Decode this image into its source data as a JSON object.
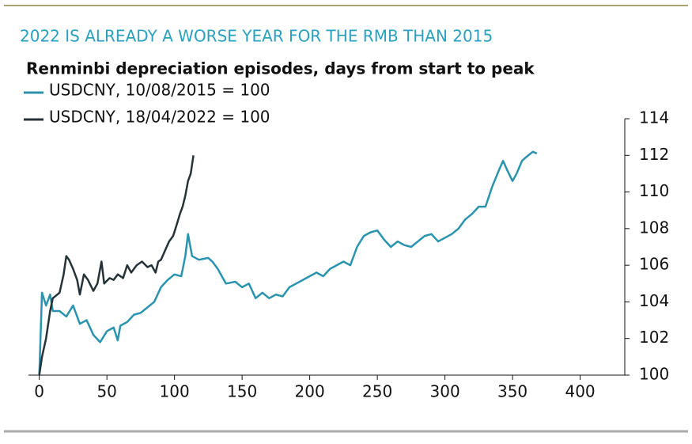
{
  "chart_data": {
    "type": "line",
    "title": "2022 IS ALREADY A WORSE YEAR FOR THE RMB THAN 2015",
    "subtitle": "Renminbi depreciation episodes, days from start to peak",
    "xlim": [
      -8,
      433
    ],
    "xticks": [
      0,
      50,
      100,
      150,
      200,
      250,
      300,
      350,
      400
    ],
    "ylim": [
      100,
      114
    ],
    "yticks": [
      100,
      102,
      104,
      106,
      108,
      110,
      112,
      114
    ],
    "y_axis_side": "right",
    "series": [
      {
        "name": "USDCNY, 10/08/2015 = 100",
        "color": "#2a93ae",
        "x": [
          0,
          2,
          5,
          8,
          10,
          15,
          20,
          25,
          30,
          35,
          40,
          45,
          50,
          55,
          58,
          60,
          65,
          70,
          75,
          80,
          85,
          90,
          95,
          100,
          105,
          108,
          110,
          113,
          118,
          125,
          128,
          132,
          138,
          145,
          150,
          155,
          160,
          165,
          170,
          175,
          180,
          185,
          190,
          195,
          200,
          205,
          210,
          215,
          220,
          225,
          230,
          235,
          240,
          245,
          250,
          255,
          260,
          265,
          270,
          275,
          280,
          285,
          290,
          295,
          300,
          305,
          310,
          315,
          320,
          325,
          330,
          335,
          340,
          343,
          346,
          350,
          353,
          357,
          360,
          365,
          368
        ],
        "values": [
          100,
          104.5,
          103.8,
          104.4,
          103.5,
          103.5,
          103.2,
          103.8,
          102.8,
          103.0,
          102.2,
          101.8,
          102.4,
          102.6,
          101.9,
          102.7,
          102.9,
          103.3,
          103.4,
          103.7,
          104.0,
          104.8,
          105.2,
          105.5,
          105.4,
          106.5,
          107.7,
          106.5,
          106.3,
          106.4,
          106.2,
          105.8,
          105.0,
          105.1,
          104.8,
          105.0,
          104.2,
          104.5,
          104.2,
          104.4,
          104.3,
          104.8,
          105.0,
          105.2,
          105.4,
          105.6,
          105.4,
          105.8,
          106.0,
          106.2,
          106.0,
          107.0,
          107.6,
          107.8,
          107.9,
          107.4,
          107.0,
          107.3,
          107.1,
          107.0,
          107.3,
          107.6,
          107.7,
          107.3,
          107.5,
          107.7,
          108.0,
          108.5,
          108.8,
          109.2,
          109.2,
          110.3,
          111.2,
          111.7,
          111.2,
          110.6,
          111.0,
          111.7,
          111.9,
          112.2,
          112.1
        ]
      },
      {
        "name": "USDCNY, 18/04/2022 = 100",
        "color": "#253238",
        "x": [
          0,
          2,
          5,
          8,
          10,
          15,
          18,
          20,
          22,
          25,
          28,
          30,
          33,
          36,
          40,
          43,
          46,
          48,
          52,
          55,
          58,
          62,
          65,
          68,
          72,
          76,
          80,
          83,
          86,
          88,
          90,
          93,
          96,
          99,
          102,
          104,
          106,
          108,
          110,
          112,
          114
        ],
        "values": [
          100,
          101,
          102,
          103.5,
          104.2,
          104.5,
          105.5,
          106.5,
          106.3,
          105.8,
          105.2,
          104.4,
          105.5,
          105.2,
          104.6,
          105.0,
          106.2,
          105.0,
          105.3,
          105.2,
          105.5,
          105.3,
          106.0,
          105.6,
          106.0,
          106.2,
          105.9,
          106.0,
          105.6,
          106.2,
          106.3,
          106.8,
          107.3,
          107.6,
          108.3,
          108.8,
          109.2,
          109.8,
          110.6,
          111.0,
          112.0
        ]
      }
    ]
  }
}
